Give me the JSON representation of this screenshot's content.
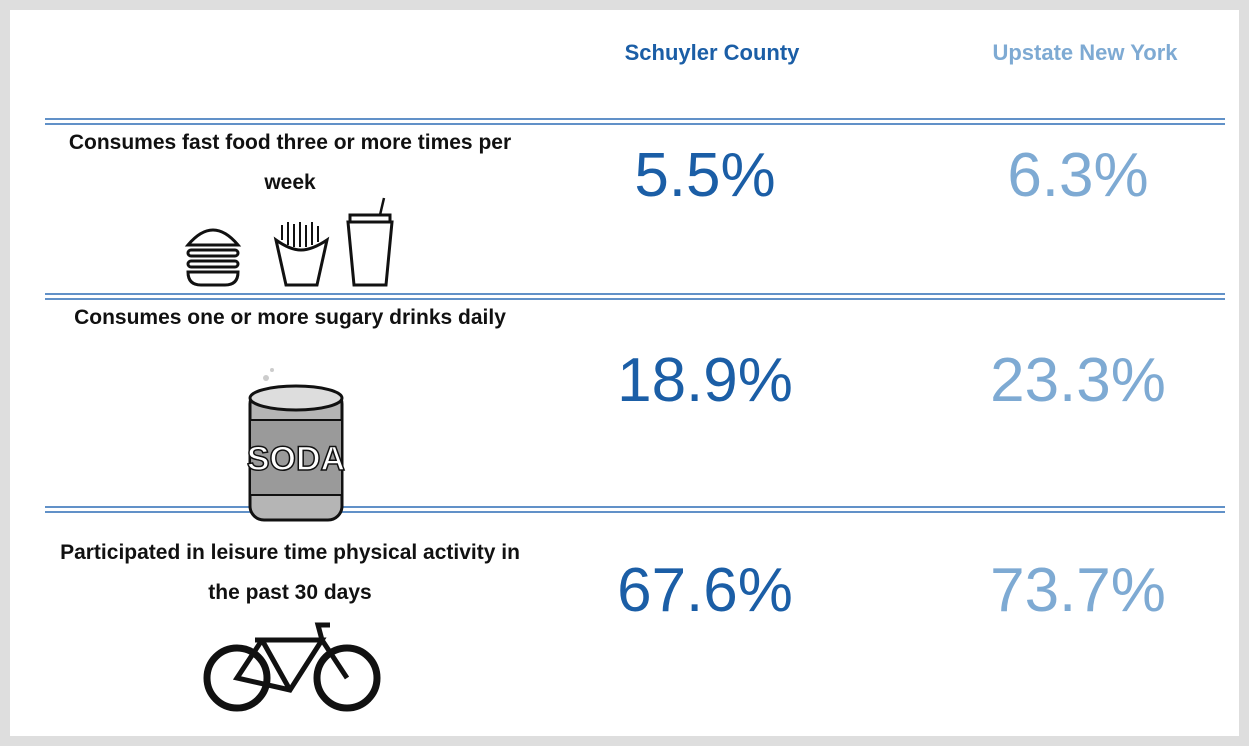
{
  "header": {
    "columns": [
      "Schuyler County",
      "Upstate New York"
    ]
  },
  "table": {
    "rows": [
      [
        "Consumes fast food three or more times per week",
        "5.5%",
        "6.3%"
      ],
      [
        "Consumes one or more sugary drinks daily",
        "18.9%",
        "23.3%"
      ],
      [
        "Participated in leisure time physical activity in the past 30 days",
        "67.6%",
        "73.7%"
      ]
    ]
  },
  "icons": {
    "soda": "SODA"
  }
}
